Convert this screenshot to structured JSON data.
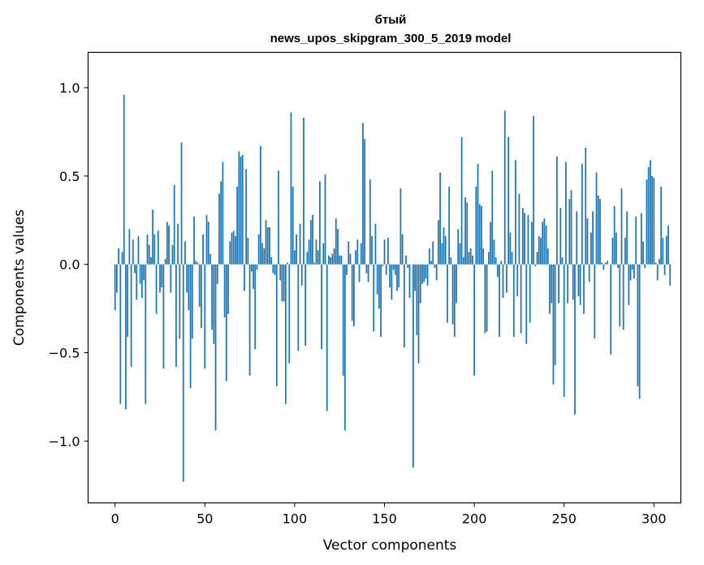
{
  "chart_data": {
    "type": "bar",
    "title": "бтый",
    "subtitle": "news_upos_skipgram_300_5_2019 model",
    "xlabel": "Vector components",
    "ylabel": "Components values",
    "xlim": [
      -15,
      315
    ],
    "ylim": [
      -1.35,
      1.2
    ],
    "xticks": [
      {
        "value": 0,
        "label": "0"
      },
      {
        "value": 50,
        "label": "50"
      },
      {
        "value": 100,
        "label": "100"
      },
      {
        "value": 150,
        "label": "150"
      },
      {
        "value": 200,
        "label": "200"
      },
      {
        "value": 250,
        "label": "250"
      },
      {
        "value": 300,
        "label": "300"
      }
    ],
    "yticks": [
      {
        "value": -1.0,
        "label": "−1.0"
      },
      {
        "value": -0.5,
        "label": "−0.5"
      },
      {
        "value": 0.0,
        "label": "0.0"
      },
      {
        "value": 0.5,
        "label": "0.5"
      },
      {
        "value": 1.0,
        "label": "1.0"
      }
    ],
    "grid": false,
    "bar_color": "#1f77b4",
    "values": [
      -0.26,
      -0.16,
      0.09,
      -0.79,
      0.07,
      0.96,
      -0.82,
      -0.41,
      0.2,
      -0.58,
      0.14,
      -0.05,
      -0.2,
      0.16,
      -0.11,
      -0.19,
      -0.09,
      -0.79,
      0.17,
      0.11,
      0.04,
      0.31,
      0.17,
      -0.28,
      0.19,
      -0.16,
      -0.13,
      -0.59,
      0.03,
      0.24,
      0.22,
      -0.16,
      0.11,
      0.45,
      -0.58,
      0.23,
      -0.42,
      0.69,
      -1.23,
      0.13,
      -0.16,
      -0.26,
      -0.7,
      -0.42,
      0.27,
      0.02,
      0.01,
      -0.24,
      -0.36,
      0.17,
      -0.59,
      0.28,
      0.24,
      0.06,
      -0.37,
      -0.45,
      -0.94,
      -0.11,
      0.4,
      0.47,
      0.58,
      -0.3,
      -0.66,
      -0.28,
      0.13,
      0.18,
      0.19,
      0.16,
      0.44,
      0.64,
      0.61,
      0.62,
      -0.15,
      0.54,
      0.15,
      -0.63,
      -0.04,
      -0.14,
      -0.48,
      -0.03,
      0.17,
      0.67,
      0.12,
      0.09,
      0.25,
      0.21,
      0.21,
      0.04,
      -0.05,
      -0.06,
      -0.69,
      0.53,
      -0.09,
      -0.21,
      -0.21,
      -0.79,
      0.01,
      -0.56,
      0.86,
      0.44,
      0.08,
      0.17,
      -0.49,
      0.23,
      -0.12,
      0.83,
      -0.46,
      0.07,
      0.14,
      0.25,
      0.28,
      0.01,
      0.14,
      0.08,
      0.47,
      -0.48,
      0.12,
      0.51,
      -0.83,
      0.05,
      0.04,
      0.06,
      0.09,
      0.26,
      0.2,
      0.05,
      0.05,
      -0.63,
      -0.94,
      -0.06,
      0.13,
      0.06,
      -0.32,
      -0.35,
      0.08,
      0.14,
      -0.1,
      0.12,
      0.8,
      0.71,
      -0.05,
      -0.1,
      0.48,
      0.16,
      -0.38,
      0.23,
      -0.17,
      -0.25,
      -0.41,
      -0.01,
      0.14,
      -0.06,
      0.15,
      -0.13,
      -0.2,
      -0.03,
      -0.06,
      -0.15,
      -0.13,
      0.43,
      0.17,
      -0.47,
      0.05,
      -0.02,
      -0.19,
      0.0,
      -1.15,
      -0.15,
      -0.4,
      -0.56,
      -0.22,
      -0.11,
      -0.1,
      -0.08,
      -0.12,
      0.09,
      0.02,
      0.13,
      -0.02,
      -0.09,
      0.25,
      0.52,
      0.12,
      0.21,
      0.16,
      -0.33,
      0.44,
      0.04,
      -0.34,
      -0.41,
      -0.22,
      0.2,
      0.12,
      0.72,
      0.04,
      0.38,
      0.35,
      0.07,
      0.09,
      0.05,
      -0.63,
      0.44,
      0.57,
      0.34,
      0.33,
      0.09,
      -0.39,
      -0.38,
      0.07,
      0.24,
      0.53,
      0.14,
      0.04,
      -0.07,
      -0.41,
      0.02,
      -0.19,
      0.87,
      -0.16,
      0.72,
      0.18,
      0.07,
      -0.41,
      0.59,
      -0.18,
      0.4,
      -0.39,
      0.32,
      0.29,
      -0.45,
      0.28,
      -0.33,
      0.24,
      0.84,
      -0.01,
      0.07,
      0.16,
      0.15,
      0.24,
      0.26,
      0.22,
      0.09,
      -0.28,
      -0.22,
      -0.68,
      -0.57,
      0.61,
      -0.22,
      0.32,
      0.04,
      -0.75,
      0.58,
      -0.22,
      0.37,
      0.42,
      -0.2,
      -0.85,
      0.3,
      -0.18,
      -0.23,
      0.57,
      -0.28,
      0.66,
      0.26,
      -0.1,
      0.18,
      0.3,
      -0.42,
      0.52,
      0.39,
      0.37,
      0.01,
      -0.03,
      0.01,
      0.02,
      0.0,
      -0.51,
      0.15,
      0.33,
      0.18,
      -0.02,
      -0.35,
      0.43,
      -0.37,
      0.15,
      0.3,
      -0.23,
      -0.09,
      -0.03,
      -0.08,
      0.27,
      -0.69,
      -0.76,
      0.29,
      0.13,
      -0.02,
      0.48,
      0.55,
      0.59,
      0.5,
      0.49,
      0.01,
      -0.09,
      0.03,
      0.44,
      0.15,
      -0.06,
      0.16,
      0.22,
      -0.12
    ]
  }
}
